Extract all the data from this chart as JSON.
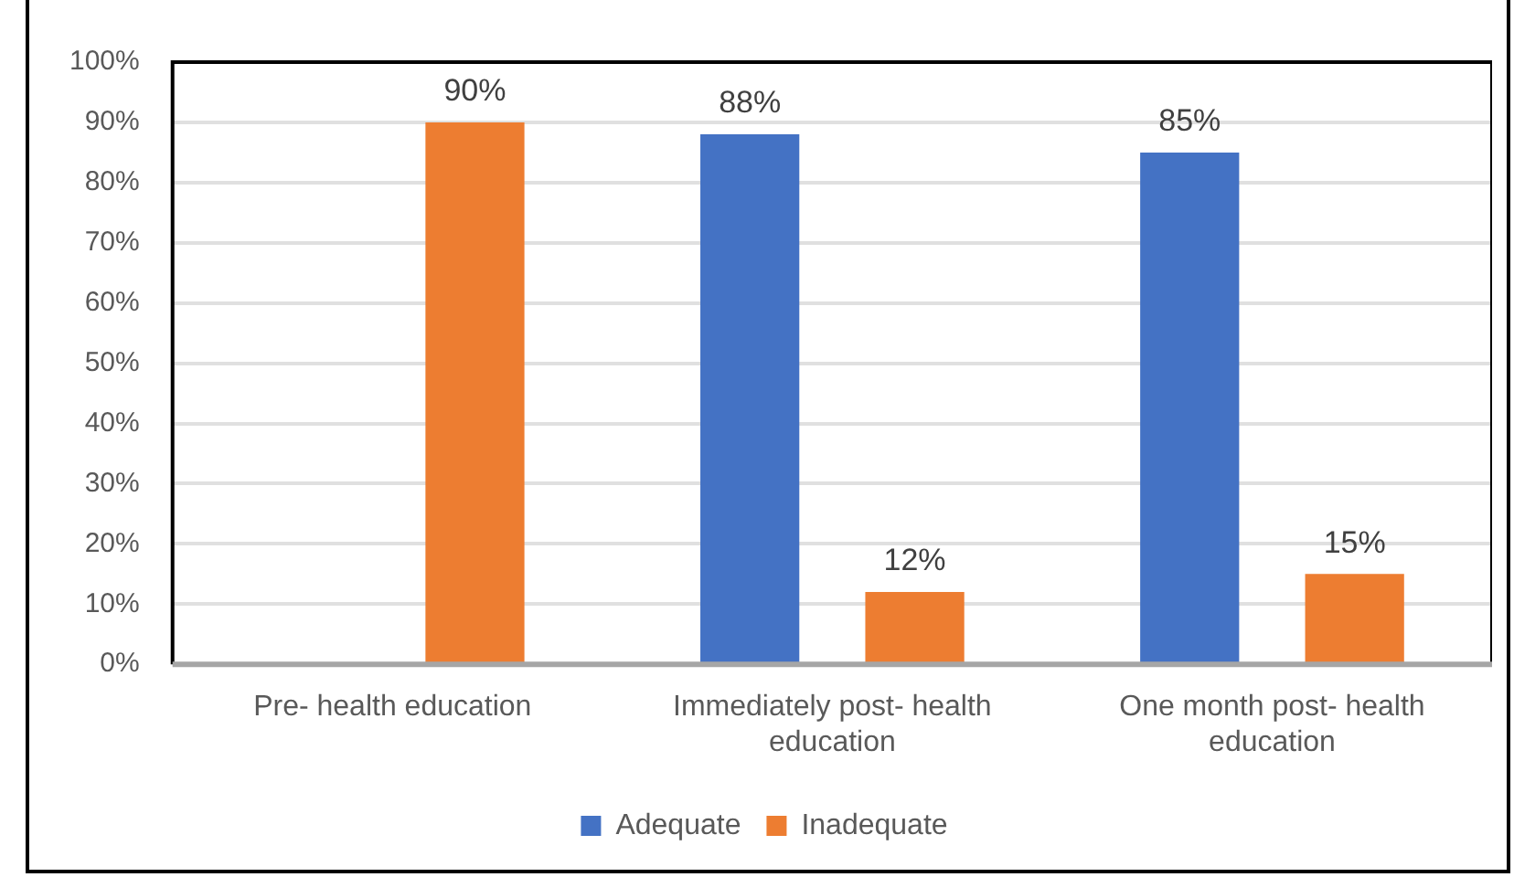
{
  "chart_data": {
    "type": "bar",
    "categories": [
      "Pre- health education",
      "Immediately post- health education",
      "One month post- health education"
    ],
    "series": [
      {
        "name": "Adequate",
        "color": "#4472c4",
        "values": [
          null,
          88,
          85
        ],
        "value_labels": [
          null,
          "88%",
          "85%"
        ]
      },
      {
        "name": "Inadequate",
        "color": "#ed7d31",
        "values": [
          90,
          12,
          15
        ],
        "value_labels": [
          "90%",
          "12%",
          "15%"
        ]
      }
    ],
    "ylim": [
      0,
      100
    ],
    "yticks": [
      {
        "value": 0,
        "label": "0%"
      },
      {
        "value": 10,
        "label": "10%"
      },
      {
        "value": 20,
        "label": "20%"
      },
      {
        "value": 30,
        "label": "30%"
      },
      {
        "value": 40,
        "label": "40%"
      },
      {
        "value": 50,
        "label": "50%"
      },
      {
        "value": 60,
        "label": "60%"
      },
      {
        "value": 70,
        "label": "70%"
      },
      {
        "value": 80,
        "label": "80%"
      },
      {
        "value": 90,
        "label": "90%"
      },
      {
        "value": 100,
        "label": "100%"
      }
    ],
    "grid": "y",
    "legend": "bottom"
  }
}
